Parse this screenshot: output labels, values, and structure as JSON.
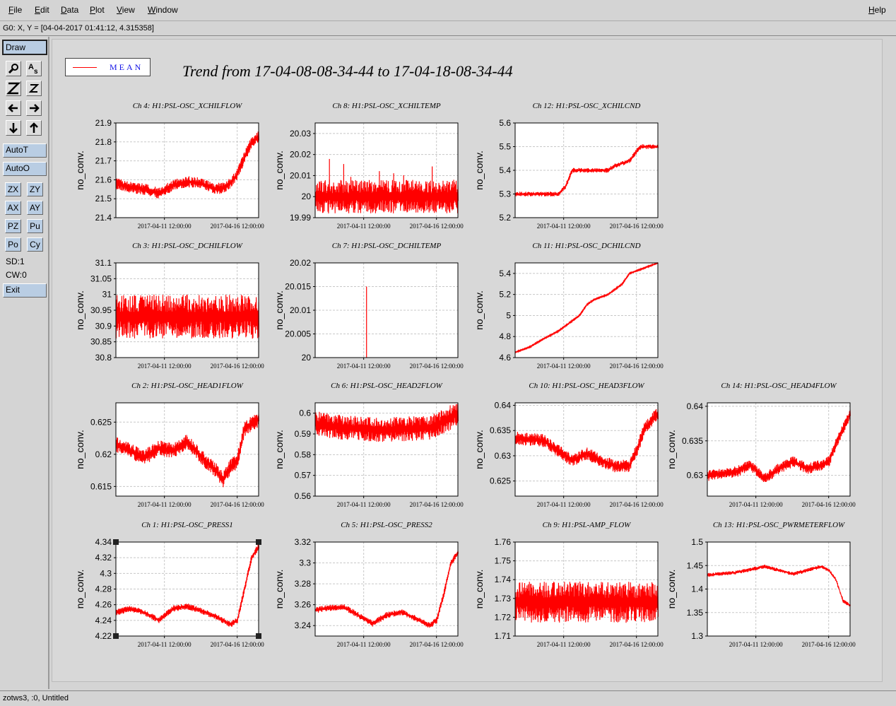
{
  "menu": {
    "file": "File",
    "edit": "Edit",
    "data": "Data",
    "plot": "Plot",
    "view": "View",
    "window": "Window",
    "help": "Help"
  },
  "cursor_readout": "G0: X, Y = [04-04-2017 01:41:12, 4.315358]",
  "toolbar": {
    "draw": "Draw",
    "autot": "AutoT",
    "autoo": "AutoO",
    "zx": "ZX",
    "zy": "ZY",
    "ax": "AX",
    "ay": "AY",
    "pz": "PZ",
    "pu": "Pu",
    "po": "Po",
    "cy": "Cy",
    "sd": "SD:1",
    "cw": "CW:0",
    "exit": "Exit"
  },
  "footer": "zotws3, :0, Untitled",
  "legend_label": "MEAN",
  "trend_title": "Trend from 17-04-08-08-34-44 to 17-04-18-08-34-44",
  "colors": {
    "trace": "#ff0000",
    "legend_text": "#1414e6",
    "button": "#b9cde3"
  },
  "chart_data": [
    {
      "type": "line",
      "title": "Ch 4: H1:PSL-OSC_XCHILFLOW",
      "ylabel": "no_conv.",
      "ylim": [
        21.4,
        21.9
      ],
      "yticks": [
        "21.4",
        "21.5",
        "21.6",
        "21.7",
        "21.8",
        "21.9"
      ],
      "xticks": [
        "2017-04-11 12:00:00",
        "2017-04-16 12:00:00"
      ],
      "x": [
        0,
        0.1,
        0.2,
        0.3,
        0.4,
        0.5,
        0.6,
        0.7,
        0.75,
        0.8,
        0.85,
        0.9,
        0.95,
        1
      ],
      "y": [
        21.58,
        21.56,
        21.55,
        21.53,
        21.57,
        21.59,
        21.58,
        21.55,
        21.56,
        21.58,
        21.63,
        21.72,
        21.8,
        21.83
      ],
      "noise": 0.03,
      "spikes": []
    },
    {
      "type": "line",
      "title": "Ch 8: H1:PSL-OSC_XCHILTEMP",
      "ylabel": "no_conv.",
      "ylim": [
        19.99,
        20.035
      ],
      "yticks": [
        "19.99",
        "20",
        "20.01",
        "20.02",
        "20.03"
      ],
      "xticks": [
        "2017-04-11 12:00:00",
        "2017-04-16 12:00:00"
      ],
      "x": [
        0,
        1
      ],
      "y": [
        20.0,
        20.0
      ],
      "noise": 0.008,
      "spikes": [
        0.1,
        0.15,
        0.2,
        0.25,
        0.35,
        0.45,
        0.55,
        0.62,
        0.78,
        0.82,
        0.85,
        0.9
      ]
    },
    {
      "type": "line",
      "title": "Ch 12: H1:PSL-OSC_XCHILCND",
      "ylabel": "no_conv.",
      "ylim": [
        5.2,
        5.6
      ],
      "yticks": [
        "5.2",
        "5.3",
        "5.4",
        "5.5",
        "5.6"
      ],
      "xticks": [
        "2017-04-11 12:00:00",
        "2017-04-16 12:00:00"
      ],
      "x": [
        0,
        0.25,
        0.3,
        0.35,
        0.4,
        0.6,
        0.65,
        0.7,
        0.8,
        0.85,
        0.88,
        1
      ],
      "y": [
        5.3,
        5.3,
        5.3,
        5.33,
        5.4,
        5.4,
        5.4,
        5.42,
        5.44,
        5.48,
        5.5,
        5.5
      ],
      "noise": 0.01,
      "spikes": []
    },
    {
      "type": "line",
      "title": "Ch 3: H1:PSL-OSC_DCHILFLOW",
      "ylabel": "no_conv.",
      "ylim": [
        30.8,
        31.1
      ],
      "yticks": [
        "30.8",
        "30.85",
        "30.9",
        "30.95",
        "31",
        "31.05",
        "31.1"
      ],
      "xticks": [
        "2017-04-11 12:00:00",
        "2017-04-16 12:00:00"
      ],
      "x": [
        0,
        1
      ],
      "y": [
        30.93,
        30.93
      ],
      "noise": 0.07,
      "spikes": []
    },
    {
      "type": "line",
      "title": "Ch 7: H1:PSL-OSC_DCHILTEMP",
      "ylabel": "no_conv.",
      "ylim": [
        20,
        20.02
      ],
      "yticks": [
        "20",
        "20.005",
        "20.01",
        "20.015",
        "20.02"
      ],
      "xticks": [
        "2017-04-11 12:00:00",
        "2017-04-16 12:00:00"
      ],
      "x": [
        0,
        1
      ],
      "y": [
        20,
        20
      ],
      "noise": 0,
      "spikes": [
        0.36
      ]
    },
    {
      "type": "line",
      "title": "Ch 11: H1:PSL-OSC_DCHILCND",
      "ylabel": "no_conv.",
      "ylim": [
        4.6,
        5.5
      ],
      "yticks": [
        "4.6",
        "4.8",
        "5",
        "5.2",
        "5.4"
      ],
      "xticks": [
        "2017-04-11 12:00:00",
        "2017-04-16 12:00:00"
      ],
      "x": [
        0,
        0.1,
        0.2,
        0.3,
        0.35,
        0.45,
        0.5,
        0.55,
        0.65,
        0.75,
        0.8,
        0.9,
        1
      ],
      "y": [
        4.65,
        4.7,
        4.78,
        4.85,
        4.9,
        5.0,
        5.1,
        5.15,
        5.2,
        5.3,
        5.4,
        5.45,
        5.5
      ],
      "noise": 0.005,
      "spikes": []
    },
    {
      "type": "line",
      "title": "Ch 2: H1:PSL-OSC_HEAD1FLOW",
      "ylabel": "no_conv.",
      "ylim": [
        0.6135,
        0.628
      ],
      "yticks": [
        "0.615",
        "0.62",
        "0.625"
      ],
      "xticks": [
        "2017-04-11 12:00:00",
        "2017-04-16 12:00:00"
      ],
      "x": [
        0,
        0.1,
        0.2,
        0.3,
        0.4,
        0.5,
        0.6,
        0.7,
        0.75,
        0.8,
        0.85,
        0.9,
        1
      ],
      "y": [
        0.6215,
        0.6205,
        0.6195,
        0.621,
        0.6205,
        0.622,
        0.6195,
        0.6175,
        0.616,
        0.618,
        0.619,
        0.624,
        0.6255
      ],
      "noise": 0.0012,
      "spikes": []
    },
    {
      "type": "line",
      "title": "Ch 6: H1:PSL-OSC_HEAD2FLOW",
      "ylabel": "no_conv.",
      "ylim": [
        0.56,
        0.605
      ],
      "yticks": [
        "0.56",
        "0.57",
        "0.58",
        "0.59",
        "0.6"
      ],
      "xticks": [
        "2017-04-11 12:00:00",
        "2017-04-16 12:00:00"
      ],
      "x": [
        0,
        0.2,
        0.5,
        0.8,
        0.9,
        1
      ],
      "y": [
        0.595,
        0.593,
        0.592,
        0.593,
        0.596,
        0.6
      ],
      "noise": 0.006,
      "spikes": []
    },
    {
      "type": "line",
      "title": "Ch 10: H1:PSL-OSC_HEAD3FLOW",
      "ylabel": "no_conv.",
      "ylim": [
        0.622,
        0.6405
      ],
      "yticks": [
        "0.625",
        "0.63",
        "0.635",
        "0.64"
      ],
      "xticks": [
        "2017-04-11 12:00:00",
        "2017-04-16 12:00:00"
      ],
      "x": [
        0,
        0.2,
        0.3,
        0.4,
        0.5,
        0.6,
        0.7,
        0.8,
        0.85,
        0.9,
        1
      ],
      "y": [
        0.6335,
        0.633,
        0.631,
        0.629,
        0.6305,
        0.629,
        0.628,
        0.628,
        0.631,
        0.635,
        0.6385
      ],
      "noise": 0.0013,
      "spikes": []
    },
    {
      "type": "line",
      "title": "Ch 14: H1:PSL-OSC_HEAD4FLOW",
      "ylabel": "no_conv.",
      "ylim": [
        0.627,
        0.6405
      ],
      "yticks": [
        "0.63",
        "0.635",
        "0.64"
      ],
      "xticks": [
        "2017-04-11 12:00:00",
        "2017-04-16 12:00:00"
      ],
      "x": [
        0,
        0.2,
        0.3,
        0.4,
        0.5,
        0.6,
        0.7,
        0.8,
        0.85,
        0.9,
        1
      ],
      "y": [
        0.63,
        0.6305,
        0.6315,
        0.6295,
        0.631,
        0.632,
        0.631,
        0.6315,
        0.632,
        0.6345,
        0.639
      ],
      "noise": 0.0008,
      "spikes": []
    },
    {
      "type": "line",
      "title": "Ch 1: H1:PSL-OSC_PRESS1",
      "ylabel": "no_conv.",
      "ylim": [
        4.22,
        4.34
      ],
      "yticks": [
        "4.22",
        "4.24",
        "4.26",
        "4.28",
        "4.3",
        "4.32",
        "4.34"
      ],
      "xticks": [
        "2017-04-11 12:00:00",
        "2017-04-16 12:00:00"
      ],
      "x": [
        0,
        0.1,
        0.2,
        0.3,
        0.4,
        0.5,
        0.6,
        0.7,
        0.8,
        0.85,
        0.9,
        0.95,
        1
      ],
      "y": [
        4.25,
        4.255,
        4.25,
        4.24,
        4.255,
        4.258,
        4.252,
        4.245,
        4.235,
        4.24,
        4.28,
        4.32,
        4.335
      ],
      "noise": 0.004,
      "spikes": []
    },
    {
      "type": "line",
      "title": "Ch 5: H1:PSL-OSC_PRESS2",
      "ylabel": "no_conv.",
      "ylim": [
        3.23,
        3.32
      ],
      "yticks": [
        "3.24",
        "3.26",
        "3.28",
        "3.3",
        "3.32"
      ],
      "xticks": [
        "2017-04-11 12:00:00",
        "2017-04-16 12:00:00"
      ],
      "x": [
        0,
        0.1,
        0.2,
        0.3,
        0.4,
        0.5,
        0.6,
        0.7,
        0.8,
        0.85,
        0.9,
        0.95,
        1
      ],
      "y": [
        3.255,
        3.257,
        3.258,
        3.25,
        3.242,
        3.25,
        3.253,
        3.247,
        3.24,
        3.245,
        3.27,
        3.3,
        3.31
      ],
      "noise": 0.003,
      "spikes": []
    },
    {
      "type": "line",
      "title": "Ch 9: H1:PSL-AMP_FLOW",
      "ylabel": "no_conv.",
      "ylim": [
        1.71,
        1.76
      ],
      "yticks": [
        "1.71",
        "1.72",
        "1.73",
        "1.74",
        "1.75",
        "1.76"
      ],
      "xticks": [
        "2017-04-11 12:00:00",
        "2017-04-16 12:00:00"
      ],
      "x": [
        0,
        1
      ],
      "y": [
        1.728,
        1.728
      ],
      "noise": 0.011,
      "spikes": []
    },
    {
      "type": "line",
      "title": "Ch 13: H1:PSL-OSC_PWRMETERFLOW",
      "ylabel": "no_conv.",
      "ylim": [
        1.3,
        1.5
      ],
      "yticks": [
        "1.3",
        "1.35",
        "1.4",
        "1.45",
        "1.5"
      ],
      "xticks": [
        "2017-04-11 12:00:00",
        "2017-04-16 12:00:00"
      ],
      "x": [
        0,
        0.2,
        0.4,
        0.5,
        0.6,
        0.7,
        0.8,
        0.85,
        0.9,
        0.95,
        1
      ],
      "y": [
        1.43,
        1.435,
        1.448,
        1.44,
        1.432,
        1.44,
        1.448,
        1.44,
        1.42,
        1.375,
        1.365
      ],
      "noise": 0.004,
      "spikes": []
    }
  ]
}
